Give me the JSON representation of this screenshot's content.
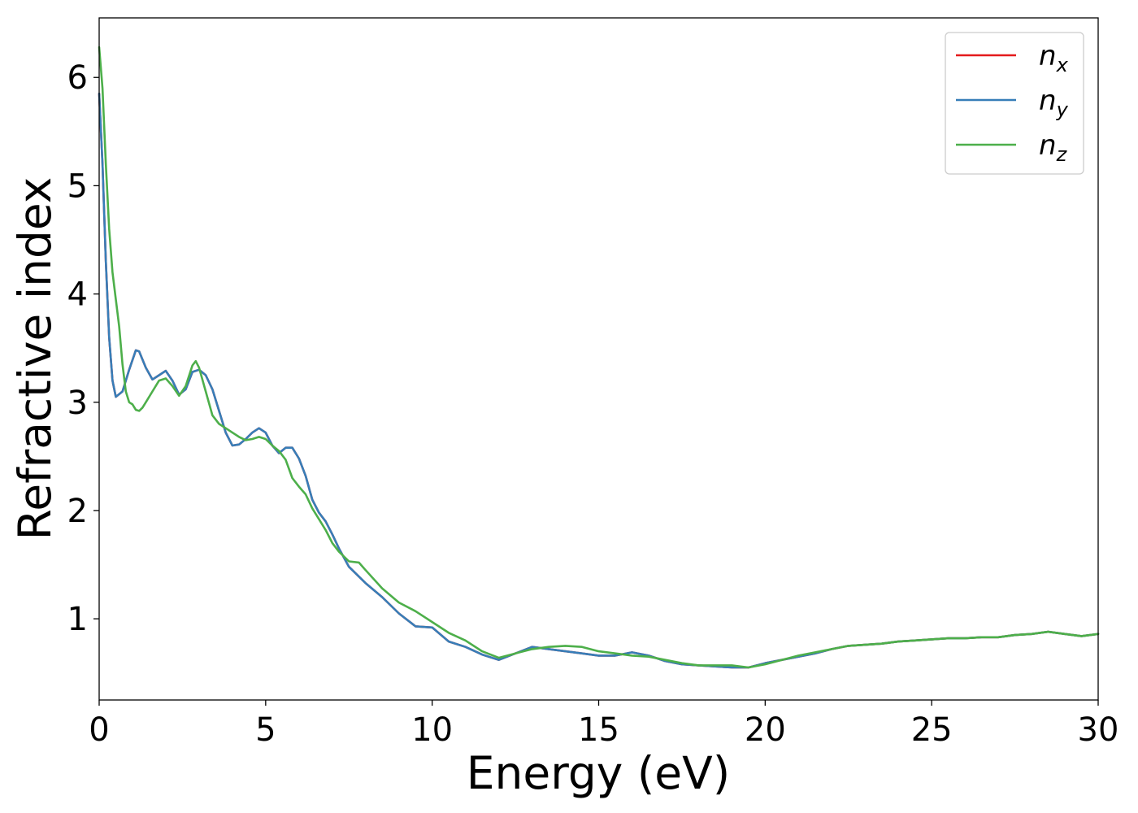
{
  "chart_data": {
    "type": "line",
    "title": "",
    "xlabel": "Energy (eV)",
    "ylabel": "Refractive index",
    "xlim": [
      0,
      30
    ],
    "ylim": [
      0.25,
      6.55
    ],
    "xticks": [
      0,
      5,
      10,
      15,
      20,
      25,
      30
    ],
    "yticks": [
      1,
      2,
      3,
      4,
      5,
      6
    ],
    "grid": false,
    "legend_position": "top-right",
    "series": [
      {
        "name": "n",
        "subscript": "x",
        "color": "#e41a1c",
        "x": [
          0,
          0.1,
          0.2,
          0.3,
          0.4,
          0.5,
          0.7,
          0.9,
          1.1,
          1.2,
          1.4,
          1.6,
          1.8,
          2.0,
          2.2,
          2.4,
          2.6,
          2.8,
          3.0,
          3.2,
          3.4,
          3.6,
          3.8,
          4.0,
          4.2,
          4.4,
          4.6,
          4.8,
          5.0,
          5.2,
          5.4,
          5.6,
          5.8,
          6.0,
          6.2,
          6.4,
          6.6,
          6.8,
          7.0,
          7.2,
          7.5,
          8.0,
          8.5,
          9.0,
          9.5,
          10.0,
          10.5,
          11.0,
          11.5,
          12.0,
          12.5,
          13.0,
          13.5,
          14.0,
          14.5,
          15.0,
          15.5,
          16.0,
          16.5,
          17.0,
          17.5,
          18.0,
          18.5,
          19.0,
          19.5,
          20.0,
          20.5,
          21.0,
          21.5,
          22.0,
          22.5,
          23.0,
          23.5,
          24.0,
          24.5,
          25.0,
          25.5,
          26.0,
          26.5,
          27.0,
          27.5,
          28.0,
          28.5,
          29.0,
          29.5,
          30.0
        ],
        "y": [
          5.85,
          5.2,
          4.3,
          3.6,
          3.2,
          3.05,
          3.1,
          3.3,
          3.48,
          3.47,
          3.32,
          3.21,
          3.25,
          3.29,
          3.2,
          3.07,
          3.12,
          3.28,
          3.3,
          3.25,
          3.12,
          2.92,
          2.72,
          2.6,
          2.61,
          2.66,
          2.72,
          2.76,
          2.72,
          2.6,
          2.53,
          2.58,
          2.58,
          2.48,
          2.32,
          2.1,
          1.98,
          1.9,
          1.78,
          1.65,
          1.48,
          1.33,
          1.2,
          1.05,
          0.93,
          0.92,
          0.79,
          0.74,
          0.67,
          0.62,
          0.68,
          0.74,
          0.72,
          0.7,
          0.68,
          0.66,
          0.66,
          0.69,
          0.66,
          0.61,
          0.58,
          0.57,
          0.56,
          0.55,
          0.55,
          0.59,
          0.62,
          0.65,
          0.68,
          0.72,
          0.75,
          0.76,
          0.77,
          0.79,
          0.8,
          0.81,
          0.82,
          0.82,
          0.83,
          0.83,
          0.85,
          0.86,
          0.88,
          0.86,
          0.84,
          0.86
        ]
      },
      {
        "name": "n",
        "subscript": "y",
        "color": "#377eb8",
        "x": [
          0,
          0.1,
          0.2,
          0.3,
          0.4,
          0.5,
          0.7,
          0.9,
          1.1,
          1.2,
          1.4,
          1.6,
          1.8,
          2.0,
          2.2,
          2.4,
          2.6,
          2.8,
          3.0,
          3.2,
          3.4,
          3.6,
          3.8,
          4.0,
          4.2,
          4.4,
          4.6,
          4.8,
          5.0,
          5.2,
          5.4,
          5.6,
          5.8,
          6.0,
          6.2,
          6.4,
          6.6,
          6.8,
          7.0,
          7.2,
          7.5,
          8.0,
          8.5,
          9.0,
          9.5,
          10.0,
          10.5,
          11.0,
          11.5,
          12.0,
          12.5,
          13.0,
          13.5,
          14.0,
          14.5,
          15.0,
          15.5,
          16.0,
          16.5,
          17.0,
          17.5,
          18.0,
          18.5,
          19.0,
          19.5,
          20.0,
          20.5,
          21.0,
          21.5,
          22.0,
          22.5,
          23.0,
          23.5,
          24.0,
          24.5,
          25.0,
          25.5,
          26.0,
          26.5,
          27.0,
          27.5,
          28.0,
          28.5,
          29.0,
          29.5,
          30.0
        ],
        "y": [
          5.85,
          5.2,
          4.3,
          3.6,
          3.2,
          3.05,
          3.1,
          3.3,
          3.48,
          3.47,
          3.32,
          3.21,
          3.25,
          3.29,
          3.2,
          3.07,
          3.12,
          3.28,
          3.3,
          3.25,
          3.12,
          2.92,
          2.72,
          2.6,
          2.61,
          2.66,
          2.72,
          2.76,
          2.72,
          2.6,
          2.53,
          2.58,
          2.58,
          2.48,
          2.32,
          2.1,
          1.98,
          1.9,
          1.78,
          1.65,
          1.48,
          1.33,
          1.2,
          1.05,
          0.93,
          0.92,
          0.79,
          0.74,
          0.67,
          0.62,
          0.68,
          0.74,
          0.72,
          0.7,
          0.68,
          0.66,
          0.66,
          0.69,
          0.66,
          0.61,
          0.58,
          0.57,
          0.56,
          0.55,
          0.55,
          0.59,
          0.62,
          0.65,
          0.68,
          0.72,
          0.75,
          0.76,
          0.77,
          0.79,
          0.8,
          0.81,
          0.82,
          0.82,
          0.83,
          0.83,
          0.85,
          0.86,
          0.88,
          0.86,
          0.84,
          0.86
        ]
      },
      {
        "name": "n",
        "subscript": "z",
        "color": "#4daf4a",
        "x": [
          0,
          0.1,
          0.2,
          0.3,
          0.4,
          0.5,
          0.6,
          0.7,
          0.8,
          0.9,
          1.0,
          1.1,
          1.2,
          1.3,
          1.4,
          1.6,
          1.8,
          2.0,
          2.2,
          2.4,
          2.6,
          2.8,
          2.9,
          3.0,
          3.2,
          3.4,
          3.6,
          3.8,
          4.0,
          4.2,
          4.4,
          4.6,
          4.8,
          5.0,
          5.2,
          5.4,
          5.6,
          5.8,
          6.0,
          6.2,
          6.4,
          6.6,
          6.8,
          7.0,
          7.2,
          7.5,
          7.8,
          8.0,
          8.5,
          9.0,
          9.5,
          10.0,
          10.5,
          11.0,
          11.5,
          12.0,
          12.5,
          13.0,
          13.5,
          14.0,
          14.5,
          15.0,
          15.5,
          16.0,
          16.5,
          17.0,
          17.5,
          18.0,
          18.5,
          19.0,
          19.5,
          20.0,
          20.5,
          21.0,
          21.5,
          22.0,
          22.5,
          23.0,
          23.5,
          24.0,
          24.5,
          25.0,
          25.5,
          26.0,
          26.5,
          27.0,
          27.5,
          28.0,
          28.5,
          29.0,
          29.5,
          30.0
        ],
        "y": [
          6.28,
          5.9,
          5.2,
          4.6,
          4.2,
          3.95,
          3.7,
          3.35,
          3.1,
          3.0,
          2.98,
          2.93,
          2.92,
          2.95,
          3.0,
          3.1,
          3.2,
          3.22,
          3.15,
          3.06,
          3.15,
          3.34,
          3.38,
          3.32,
          3.1,
          2.88,
          2.8,
          2.76,
          2.72,
          2.68,
          2.65,
          2.66,
          2.68,
          2.66,
          2.6,
          2.55,
          2.47,
          2.3,
          2.22,
          2.15,
          2.02,
          1.92,
          1.82,
          1.7,
          1.62,
          1.53,
          1.52,
          1.45,
          1.28,
          1.15,
          1.07,
          0.97,
          0.87,
          0.8,
          0.7,
          0.64,
          0.68,
          0.72,
          0.74,
          0.75,
          0.74,
          0.7,
          0.68,
          0.66,
          0.65,
          0.62,
          0.59,
          0.57,
          0.57,
          0.57,
          0.55,
          0.58,
          0.62,
          0.66,
          0.69,
          0.72,
          0.75,
          0.76,
          0.77,
          0.79,
          0.8,
          0.81,
          0.82,
          0.82,
          0.83,
          0.83,
          0.85,
          0.86,
          0.88,
          0.86,
          0.84,
          0.86
        ]
      }
    ]
  }
}
